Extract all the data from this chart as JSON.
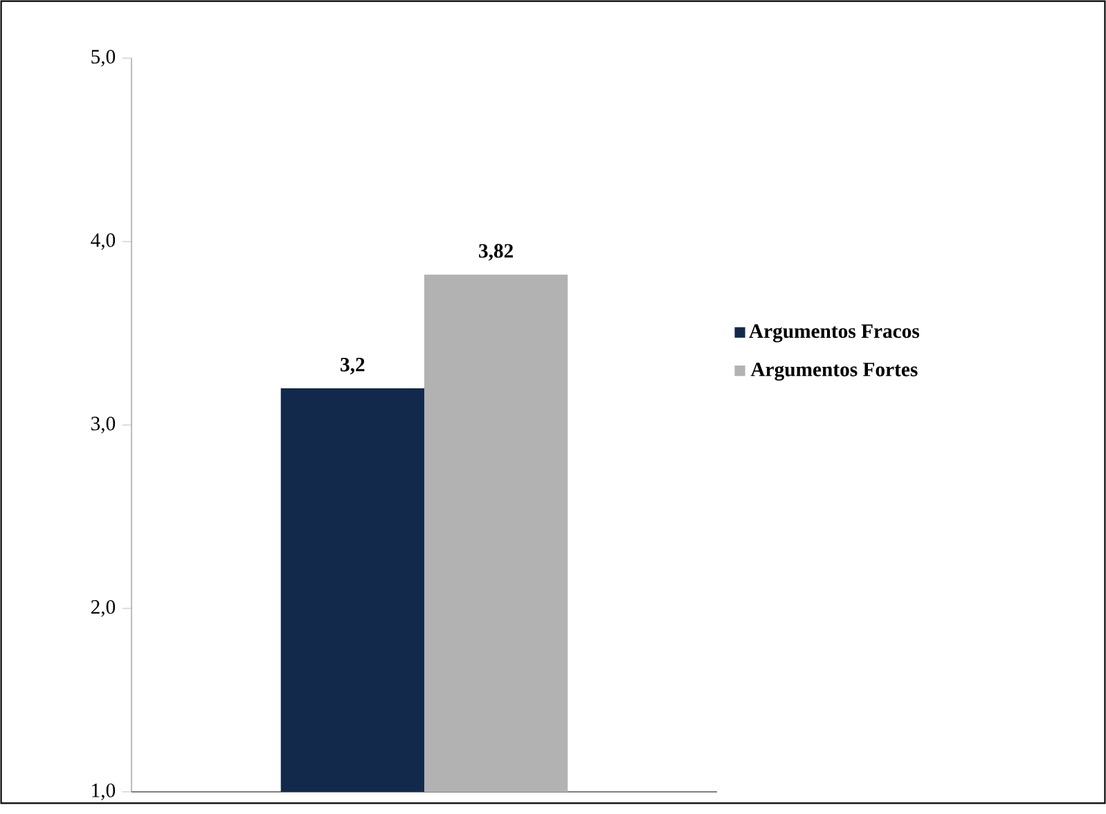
{
  "chart_data": {
    "type": "bar",
    "categories": [
      null
    ],
    "series": [
      {
        "name": "Argumentos Fracos",
        "color": "#13294b",
        "values": [
          3.2
        ],
        "value_labels": [
          "3,2"
        ]
      },
      {
        "name": "Argumentos Fortes",
        "color": "#b2b2b2",
        "values": [
          3.82
        ],
        "value_labels": [
          "3,82"
        ]
      }
    ],
    "ylim": [
      1,
      5
    ],
    "yticks": [
      {
        "value": 1,
        "label": "1,0"
      },
      {
        "value": 2,
        "label": "2,0"
      },
      {
        "value": 3,
        "label": "3,0"
      },
      {
        "value": 4,
        "label": "4,0"
      },
      {
        "value": 5,
        "label": "5,0"
      }
    ],
    "grid": false,
    "legend": "right"
  }
}
